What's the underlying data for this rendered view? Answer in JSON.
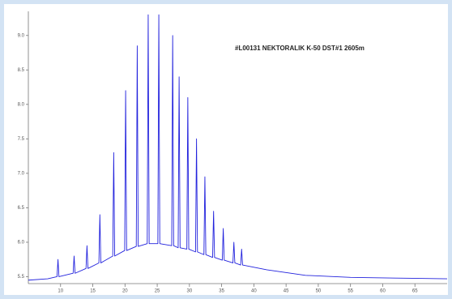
{
  "chart_data": {
    "type": "line",
    "annotation": "#L00131 NEKTORALIK K-50 DST#1 2605m",
    "x": [
      5,
      8,
      9.45,
      9.6,
      9.75,
      11.95,
      12.1,
      12.25,
      13.95,
      14.1,
      14.25,
      15.95,
      16.1,
      16.25,
      18.1,
      18.25,
      18.4,
      19.95,
      20.1,
      20.25,
      21.75,
      21.9,
      22.05,
      23.45,
      23.6,
      23.75,
      25.1,
      25.25,
      25.4,
      27.25,
      27.4,
      27.55,
      28.25,
      28.4,
      28.55,
      29.6,
      29.75,
      29.9,
      30.95,
      31.1,
      31.25,
      32.25,
      32.4,
      32.55,
      33.6,
      33.75,
      33.9,
      35.1,
      35.25,
      35.4,
      36.75,
      36.9,
      37.05,
      37.95,
      38.1,
      38.25,
      42,
      48,
      55,
      62,
      70
    ],
    "series": [
      {
        "color": "#2222dd",
        "values": [
          5.45,
          5.47,
          5.5,
          5.75,
          5.5,
          5.55,
          5.8,
          5.55,
          5.62,
          5.95,
          5.62,
          5.7,
          6.4,
          5.7,
          5.8,
          7.3,
          5.8,
          5.88,
          8.2,
          5.88,
          5.94,
          8.85,
          5.94,
          5.98,
          9.3,
          5.98,
          5.98,
          9.3,
          5.98,
          5.95,
          9.0,
          5.95,
          5.92,
          8.4,
          5.92,
          5.9,
          8.1,
          5.9,
          5.86,
          7.5,
          5.86,
          5.82,
          6.95,
          5.82,
          5.78,
          6.45,
          5.78,
          5.74,
          6.2,
          5.74,
          5.7,
          6.0,
          5.7,
          5.67,
          5.9,
          5.67,
          5.6,
          5.52,
          5.49,
          5.48,
          5.47
        ]
      }
    ],
    "xlim": [
      5,
      70
    ],
    "xticks": [
      10,
      15,
      20,
      25,
      30,
      35,
      40,
      45,
      50,
      55,
      60,
      65
    ],
    "ylim": [
      5.4,
      9.35
    ],
    "yticks": [
      5.5,
      {
        "value": 6,
        "label": "6.0"
      },
      6.5,
      {
        "value": 7,
        "label": "7.0"
      },
      7.5,
      {
        "value": 8,
        "label": "8.0"
      },
      8.5,
      {
        "value": 9,
        "label": "9.0"
      }
    ]
  }
}
